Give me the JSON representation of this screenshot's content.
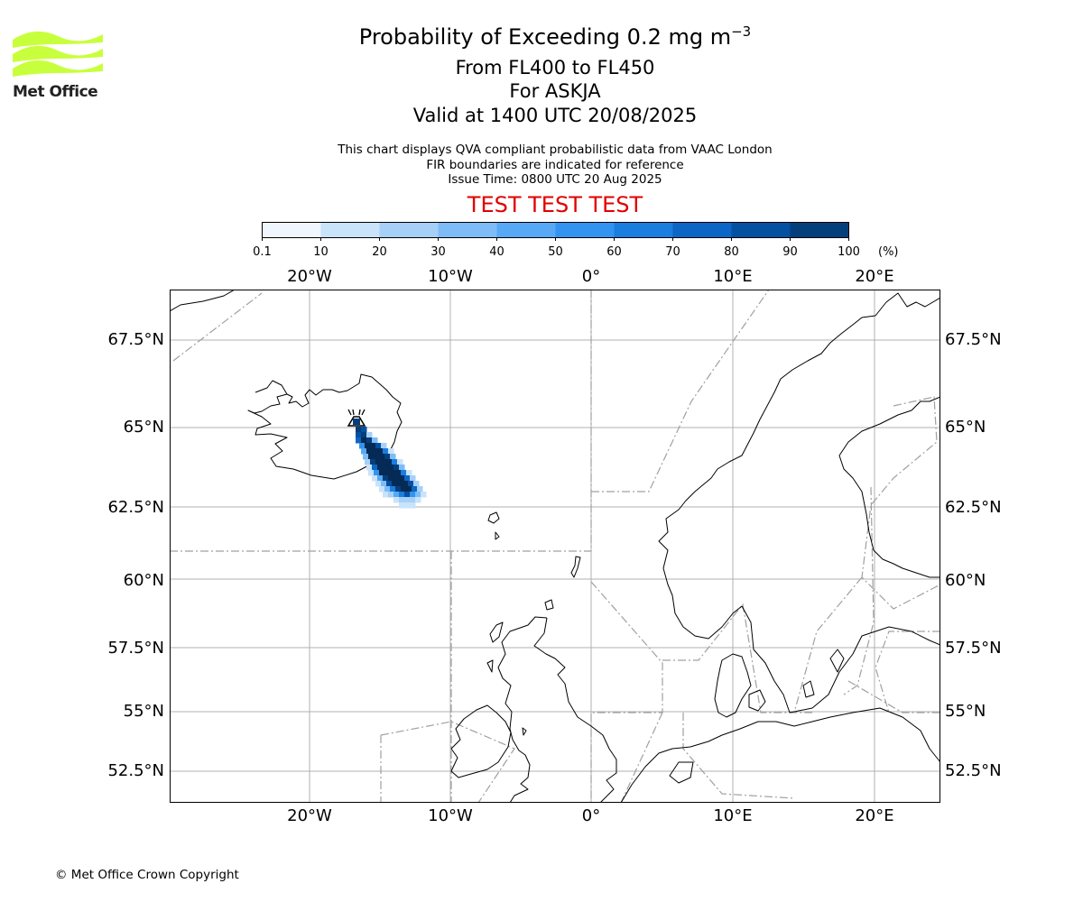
{
  "header": {
    "title_main": "Probability of Exceeding 0.2 mg m",
    "title_superscript": "−3",
    "title_levels": "From FL400 to FL450",
    "title_volcano": "For ASKJA",
    "title_valid": "Valid at 1400 UTC 20/08/2025",
    "info_line1": "This chart displays QVA compliant probabilistic data from VAAC London",
    "info_line2": "FIR boundaries are indicated for reference",
    "info_line3": "Issue Time: 0800 UTC 20 Aug 2025",
    "test_banner": "TEST TEST TEST"
  },
  "logo": {
    "text": "Met Office",
    "color": "#c8ff3c"
  },
  "colorbar": {
    "ticks": [
      "0.1",
      "10",
      "20",
      "30",
      "40",
      "50",
      "60",
      "70",
      "80",
      "90",
      "100"
    ],
    "unit": "(%)",
    "colors": [
      "#eff6fe",
      "#c9e3fb",
      "#a6d0f8",
      "#7ebcf7",
      "#57a9f5",
      "#3294f0",
      "#1a7de0",
      "#0b66c5",
      "#0450a1",
      "#043f7c",
      "#052a55"
    ]
  },
  "map": {
    "lon_labels": [
      "20°W",
      "10°W",
      "0°",
      "10°E",
      "20°E"
    ],
    "lat_labels": [
      "67.5°N",
      "65°N",
      "62.5°N",
      "60°N",
      "57.5°N",
      "55°N",
      "52.5°N"
    ],
    "volcano_name": "ASKJA",
    "colors": {
      "grid": "#b0b0b0",
      "coast": "#000000",
      "fir": "#a0a0a0"
    }
  },
  "footer": {
    "copyright": "© Met Office Crown Copyright"
  }
}
